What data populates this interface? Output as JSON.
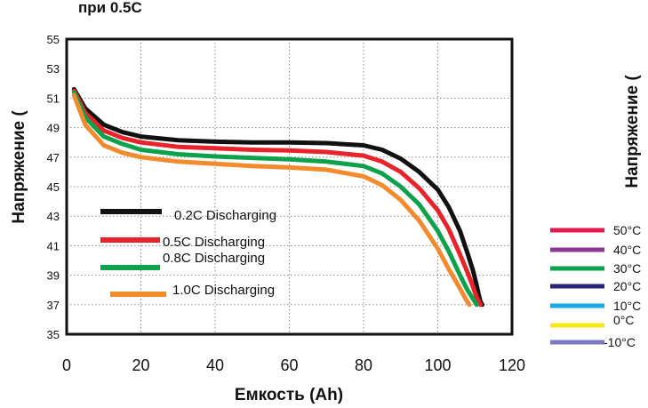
{
  "chart_data": {
    "type": "line",
    "title_fragment": "при 0.5С",
    "xlabel": "Емкость (Ah)",
    "ylabel_left": "Напряжение (",
    "ylabel_right": "Напряжение (",
    "xlim": [
      0,
      120
    ],
    "ylim": [
      35,
      55
    ],
    "xticks": [
      "0",
      "20",
      "40",
      "60",
      "80",
      "100",
      "120"
    ],
    "yticks": [
      "35",
      "37",
      "39",
      "41",
      "43",
      "45",
      "47",
      "49",
      "51",
      "53",
      "55"
    ],
    "grid": "dotted horizontal and vertical",
    "series": [
      {
        "name": "0.2C  Discharging",
        "color": "#111111",
        "x": [
          2,
          5,
          10,
          15,
          20,
          30,
          40,
          50,
          60,
          70,
          80,
          85,
          90,
          95,
          100,
          103,
          106,
          108,
          109.5,
          110.5,
          111,
          111.5,
          112
        ],
        "y": [
          51.6,
          50.3,
          49.2,
          48.7,
          48.4,
          48.15,
          48.05,
          48.0,
          48.0,
          47.95,
          47.8,
          47.5,
          46.9,
          46.0,
          44.8,
          43.6,
          42.0,
          40.5,
          39.3,
          38.3,
          37.7,
          37.2,
          37.0
        ]
      },
      {
        "name": "0.5C Discharging",
        "color": "#e8232c",
        "x": [
          2,
          5,
          10,
          15,
          20,
          30,
          40,
          50,
          60,
          70,
          80,
          85,
          90,
          95,
          100,
          103,
          106,
          108,
          109.5,
          110.5,
          111.5
        ],
        "y": [
          51.5,
          50.0,
          48.8,
          48.3,
          48.0,
          47.7,
          47.6,
          47.5,
          47.45,
          47.35,
          47.1,
          46.7,
          46.0,
          44.9,
          43.4,
          42.1,
          40.4,
          39.2,
          38.2,
          37.5,
          37.0
        ]
      },
      {
        "name": "0.8C  Discharging",
        "color": "#0da14b",
        "x": [
          2,
          5,
          10,
          15,
          20,
          30,
          40,
          50,
          60,
          70,
          80,
          85,
          90,
          95,
          100,
          103,
          106,
          108,
          109.5,
          110.5
        ],
        "y": [
          51.4,
          49.7,
          48.4,
          47.9,
          47.5,
          47.2,
          47.05,
          46.95,
          46.85,
          46.7,
          46.4,
          45.9,
          45.0,
          43.8,
          42.0,
          40.6,
          39.0,
          38.0,
          37.4,
          37.0
        ]
      },
      {
        "name": "1.0C Discharging",
        "color": "#f28a2e",
        "x": [
          2,
          5,
          10,
          15,
          20,
          30,
          40,
          50,
          60,
          70,
          80,
          85,
          90,
          95,
          100,
          103,
          106,
          107.5,
          108.5
        ],
        "y": [
          51.2,
          49.2,
          47.8,
          47.3,
          47.0,
          46.7,
          46.55,
          46.4,
          46.3,
          46.15,
          45.7,
          45.1,
          44.1,
          42.7,
          40.8,
          39.4,
          38.1,
          37.4,
          37.0
        ]
      }
    ],
    "temperature_legend": [
      {
        "label": "50°C",
        "color": "#e8184f"
      },
      {
        "label": "40°C",
        "color": "#8a3d8f"
      },
      {
        "label": "30°C",
        "color": "#0aa34f"
      },
      {
        "label": "20°C",
        "color": "#25257a"
      },
      {
        "label": "10°C",
        "color": "#1aa7e6"
      },
      {
        "label": "0°C",
        "color": "#f7e81a"
      },
      {
        "label": "-10°C",
        "color": "#7b79c4"
      }
    ]
  }
}
